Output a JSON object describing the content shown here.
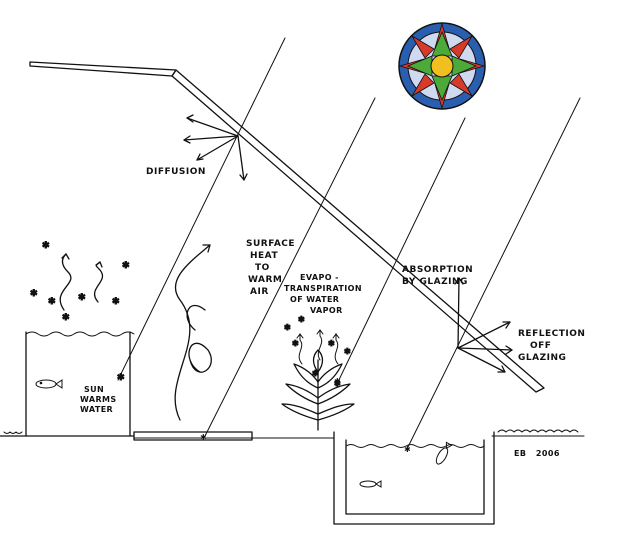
{
  "labels": {
    "diffusion": "DIFFUSION",
    "surface_heat": [
      "SURFACE",
      "HEAT",
      "TO",
      "WARM",
      "AIR"
    ],
    "evapo": [
      "EVAPO -",
      "TRANSPIRATION",
      "OF WATER",
      "VAPOR"
    ],
    "absorption": [
      "ABSORPTION",
      "BY GLAZING"
    ],
    "reflection": [
      "REFLECTION",
      "OFF",
      "GLAZING"
    ],
    "sun_warms": [
      "SUN",
      "WARMS",
      "WATER"
    ],
    "signature": "EB   2006"
  },
  "colors": {
    "sun_blue": "#2f4fa3",
    "sun_red": "#d83a2a",
    "sun_green": "#4caa3a",
    "sun_yellow": "#f0c020",
    "sun_ring": "#2a5fb0",
    "ink": "#111111"
  }
}
